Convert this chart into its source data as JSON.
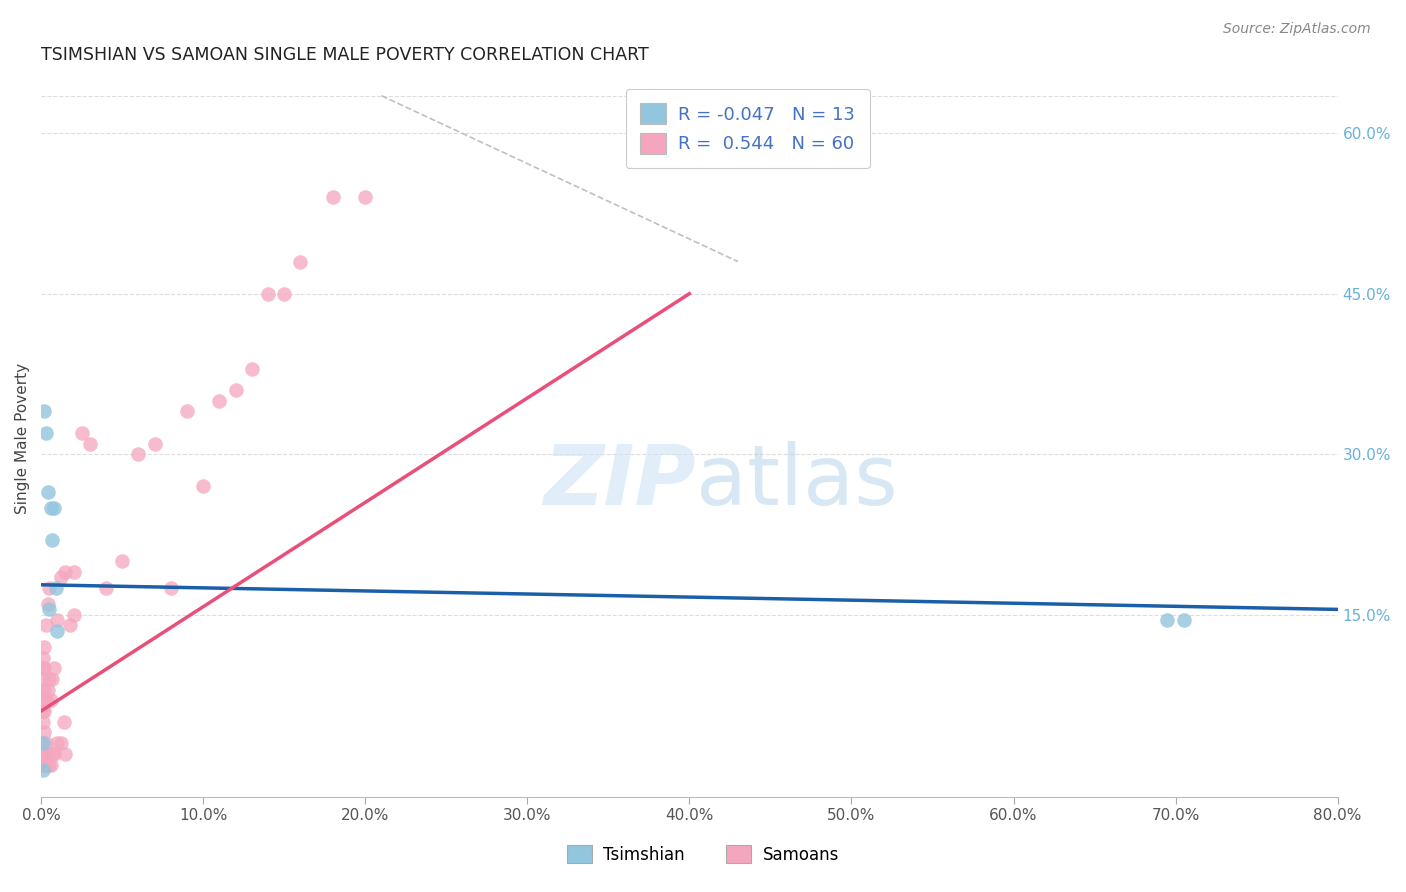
{
  "title": "TSIMSHIAN VS SAMOAN SINGLE MALE POVERTY CORRELATION CHART",
  "source": "Source: ZipAtlas.com",
  "ylabel": "Single Male Poverty",
  "legend_tsimshian_label": "Tsimshian",
  "legend_samoans_label": "Samoans",
  "r_tsimshian": -0.047,
  "n_tsimshian": 13,
  "r_samoans": 0.544,
  "n_samoans": 60,
  "xlim": [
    0.0,
    0.8
  ],
  "ylim": [
    -0.02,
    0.65
  ],
  "xticks": [
    0.0,
    0.1,
    0.2,
    0.3,
    0.4,
    0.5,
    0.6,
    0.7,
    0.8
  ],
  "xtick_labels": [
    "0.0%",
    "10.0%",
    "20.0%",
    "30.0%",
    "40.0%",
    "50.0%",
    "60.0%",
    "70.0%",
    "80.0%"
  ],
  "yticks_right": [
    0.15,
    0.3,
    0.45,
    0.6
  ],
  "ytick_labels_right": [
    "15.0%",
    "30.0%",
    "45.0%",
    "60.0%"
  ],
  "color_tsimshian": "#92c5de",
  "color_samoans": "#f4a6be",
  "color_blue_line": "#1a5fa8",
  "color_pink_line": "#e8507a",
  "color_dashed_line": "#c0c0c0",
  "background": "#ffffff",
  "tsimshian_x": [
    0.001,
    0.002,
    0.003,
    0.004,
    0.005,
    0.006,
    0.007,
    0.008,
    0.009,
    0.01,
    0.695,
    0.705,
    0.001
  ],
  "tsimshian_y": [
    0.005,
    0.34,
    0.32,
    0.265,
    0.155,
    0.25,
    0.22,
    0.25,
    0.175,
    0.135,
    0.145,
    0.145,
    0.03
  ],
  "samoans_x": [
    0.001,
    0.001,
    0.001,
    0.001,
    0.001,
    0.001,
    0.001,
    0.001,
    0.001,
    0.001,
    0.002,
    0.002,
    0.002,
    0.002,
    0.002,
    0.002,
    0.002,
    0.003,
    0.003,
    0.003,
    0.003,
    0.004,
    0.004,
    0.004,
    0.005,
    0.005,
    0.005,
    0.006,
    0.006,
    0.007,
    0.007,
    0.008,
    0.008,
    0.01,
    0.01,
    0.012,
    0.012,
    0.014,
    0.015,
    0.015,
    0.018,
    0.02,
    0.02,
    0.025,
    0.03,
    0.04,
    0.05,
    0.06,
    0.07,
    0.08,
    0.09,
    0.1,
    0.11,
    0.12,
    0.13,
    0.14,
    0.15,
    0.16,
    0.18,
    0.2
  ],
  "samoans_y": [
    0.01,
    0.02,
    0.03,
    0.05,
    0.06,
    0.07,
    0.08,
    0.09,
    0.1,
    0.11,
    0.01,
    0.02,
    0.04,
    0.06,
    0.08,
    0.1,
    0.12,
    0.01,
    0.03,
    0.07,
    0.14,
    0.02,
    0.08,
    0.16,
    0.01,
    0.09,
    0.175,
    0.01,
    0.07,
    0.02,
    0.09,
    0.02,
    0.1,
    0.03,
    0.145,
    0.03,
    0.185,
    0.05,
    0.02,
    0.19,
    0.14,
    0.15,
    0.19,
    0.32,
    0.31,
    0.175,
    0.2,
    0.3,
    0.31,
    0.175,
    0.34,
    0.27,
    0.35,
    0.36,
    0.38,
    0.45,
    0.45,
    0.48,
    0.54,
    0.54
  ],
  "blue_line_x": [
    0.0,
    0.8
  ],
  "blue_line_y": [
    0.178,
    0.155
  ],
  "pink_line_x": [
    0.0,
    0.4
  ],
  "pink_line_y": [
    0.06,
    0.45
  ],
  "dashed_line_x": [
    0.21,
    0.43
  ],
  "dashed_line_y": [
    0.635,
    0.48
  ],
  "watermark_zip": "ZIP",
  "watermark_atlas": "atlas"
}
